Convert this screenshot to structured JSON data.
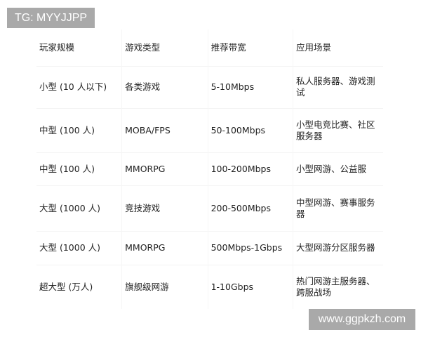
{
  "watermarks": {
    "top": "TG: MYYJJPP",
    "bottom": "www.ggpkzh.com"
  },
  "table": {
    "headers": [
      "玩家规模",
      "游戏类型",
      "推荐带宽",
      "应用场景"
    ],
    "rows": [
      [
        "小型 (10 人以下)",
        "各类游戏",
        "5-10Mbps",
        "私人服务器、游戏测试"
      ],
      [
        "中型 (100 人)",
        "MOBA/FPS",
        "50-100Mbps",
        "小型电竞比赛、社区服务器"
      ],
      [
        "中型 (100 人)",
        "MMORPG",
        "100-200Mbps",
        "小型网游、公益服"
      ],
      [
        "大型 (1000 人)",
        "竞技游戏",
        "200-500Mbps",
        "中型网游、赛事服务器"
      ],
      [
        "大型 (1000 人)",
        "MMORPG",
        "500Mbps-1Gbps",
        "大型网游分区服务器"
      ],
      [
        "超大型 (万人)",
        "旗舰级网游",
        "1-10Gbps",
        "热门网游主服务器、跨服战场"
      ]
    ]
  }
}
